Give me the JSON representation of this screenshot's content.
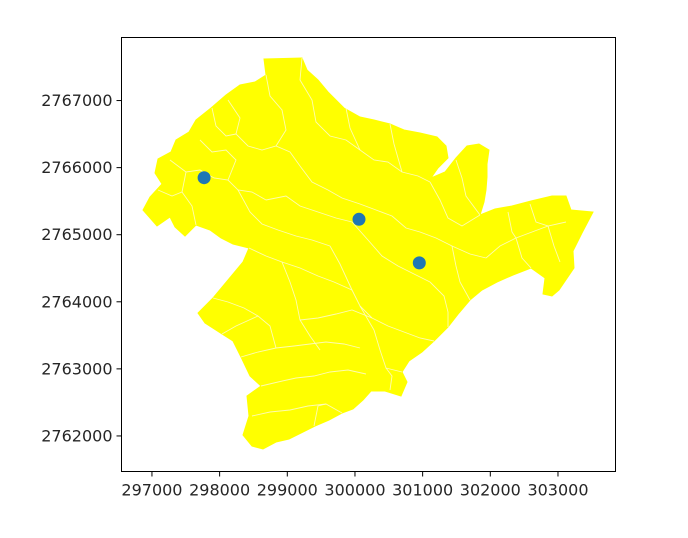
{
  "chart_data": {
    "type": "scatter",
    "xlim": [
      296550,
      303850
    ],
    "ylim": [
      2761470,
      2767940
    ],
    "xticks": [
      {
        "value": 297000,
        "label": "297000"
      },
      {
        "value": 298000,
        "label": "298000"
      },
      {
        "value": 299000,
        "label": "299000"
      },
      {
        "value": 300000,
        "label": "300000"
      },
      {
        "value": 301000,
        "label": "301000"
      },
      {
        "value": 302000,
        "label": "302000"
      },
      {
        "value": 303000,
        "label": "303000"
      }
    ],
    "yticks": [
      {
        "value": 2762000,
        "label": "2762000"
      },
      {
        "value": 2763000,
        "label": "2763000"
      },
      {
        "value": 2764000,
        "label": "2764000"
      },
      {
        "value": 2765000,
        "label": "2765000"
      },
      {
        "value": 2766000,
        "label": "2766000"
      },
      {
        "value": 2767000,
        "label": "2767000"
      }
    ],
    "points": [
      {
        "x": 297770,
        "y": 2765850
      },
      {
        "x": 300060,
        "y": 2765230
      },
      {
        "x": 300950,
        "y": 2764580
      }
    ],
    "point_color": "#1f77b4",
    "region_color": "#ffff00",
    "region_boundary_color": "#fffbd0",
    "grid": false,
    "legend": "none"
  }
}
